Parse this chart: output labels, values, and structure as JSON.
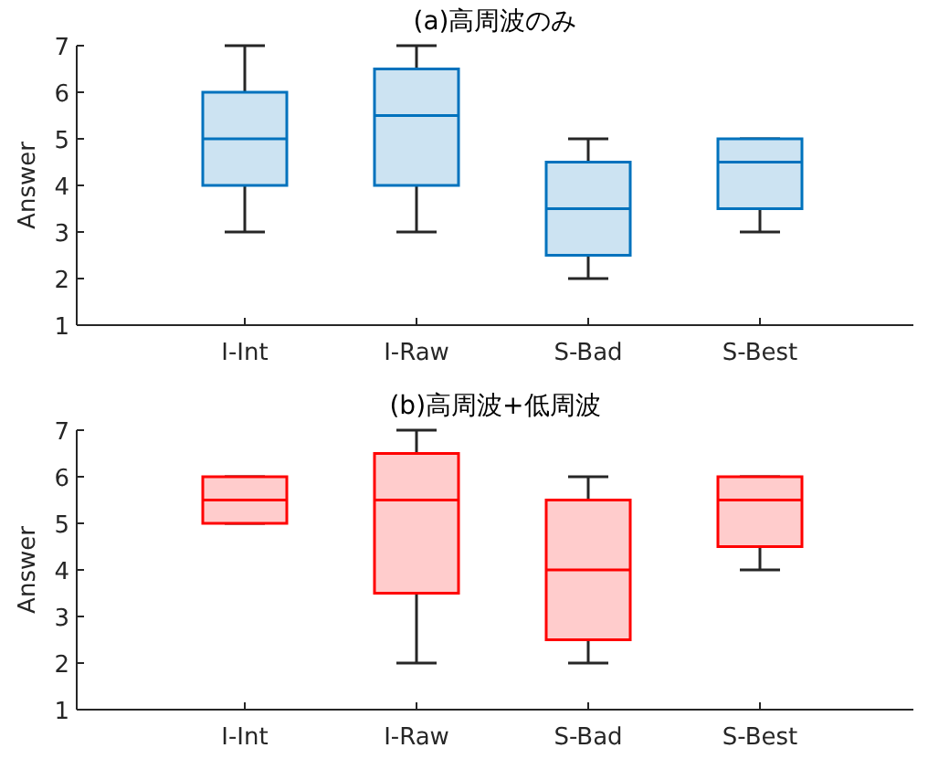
{
  "chart_data": [
    {
      "type": "box",
      "title": "(a)高周波のみ",
      "ylabel": "Answer",
      "categories": [
        "I-Int",
        "I-Raw",
        "S-Bad",
        "S-Best"
      ],
      "ylim": [
        1,
        7
      ],
      "yticks": [
        1,
        2,
        3,
        4,
        5,
        6,
        7
      ],
      "series": [
        {
          "color": "#0072bd",
          "boxes": [
            {
              "low": 3,
              "q1": 4,
              "median": 5,
              "q3": 6,
              "high": 7
            },
            {
              "low": 3,
              "q1": 4,
              "median": 5.5,
              "q3": 6.5,
              "high": 7
            },
            {
              "low": 2,
              "q1": 2.5,
              "median": 3.5,
              "q3": 4.5,
              "high": 5
            },
            {
              "low": 3,
              "q1": 3.5,
              "median": 4.5,
              "q3": 5,
              "high": 5
            }
          ]
        }
      ]
    },
    {
      "type": "box",
      "title": "(b)高周波+低周波",
      "ylabel": "Answer",
      "categories": [
        "I-Int",
        "I-Raw",
        "S-Bad",
        "S-Best"
      ],
      "ylim": [
        1,
        7
      ],
      "yticks": [
        1,
        2,
        3,
        4,
        5,
        6,
        7
      ],
      "series": [
        {
          "color": "#ff0000",
          "boxes": [
            {
              "low": 5,
              "q1": 5,
              "median": 5.5,
              "q3": 6,
              "high": 6
            },
            {
              "low": 2,
              "q1": 3.5,
              "median": 5.5,
              "q3": 6.5,
              "high": 7
            },
            {
              "low": 2,
              "q1": 2.5,
              "median": 4,
              "q3": 5.5,
              "high": 6
            },
            {
              "low": 4,
              "q1": 4.5,
              "median": 5.5,
              "q3": 6,
              "high": 6
            }
          ]
        }
      ]
    }
  ]
}
